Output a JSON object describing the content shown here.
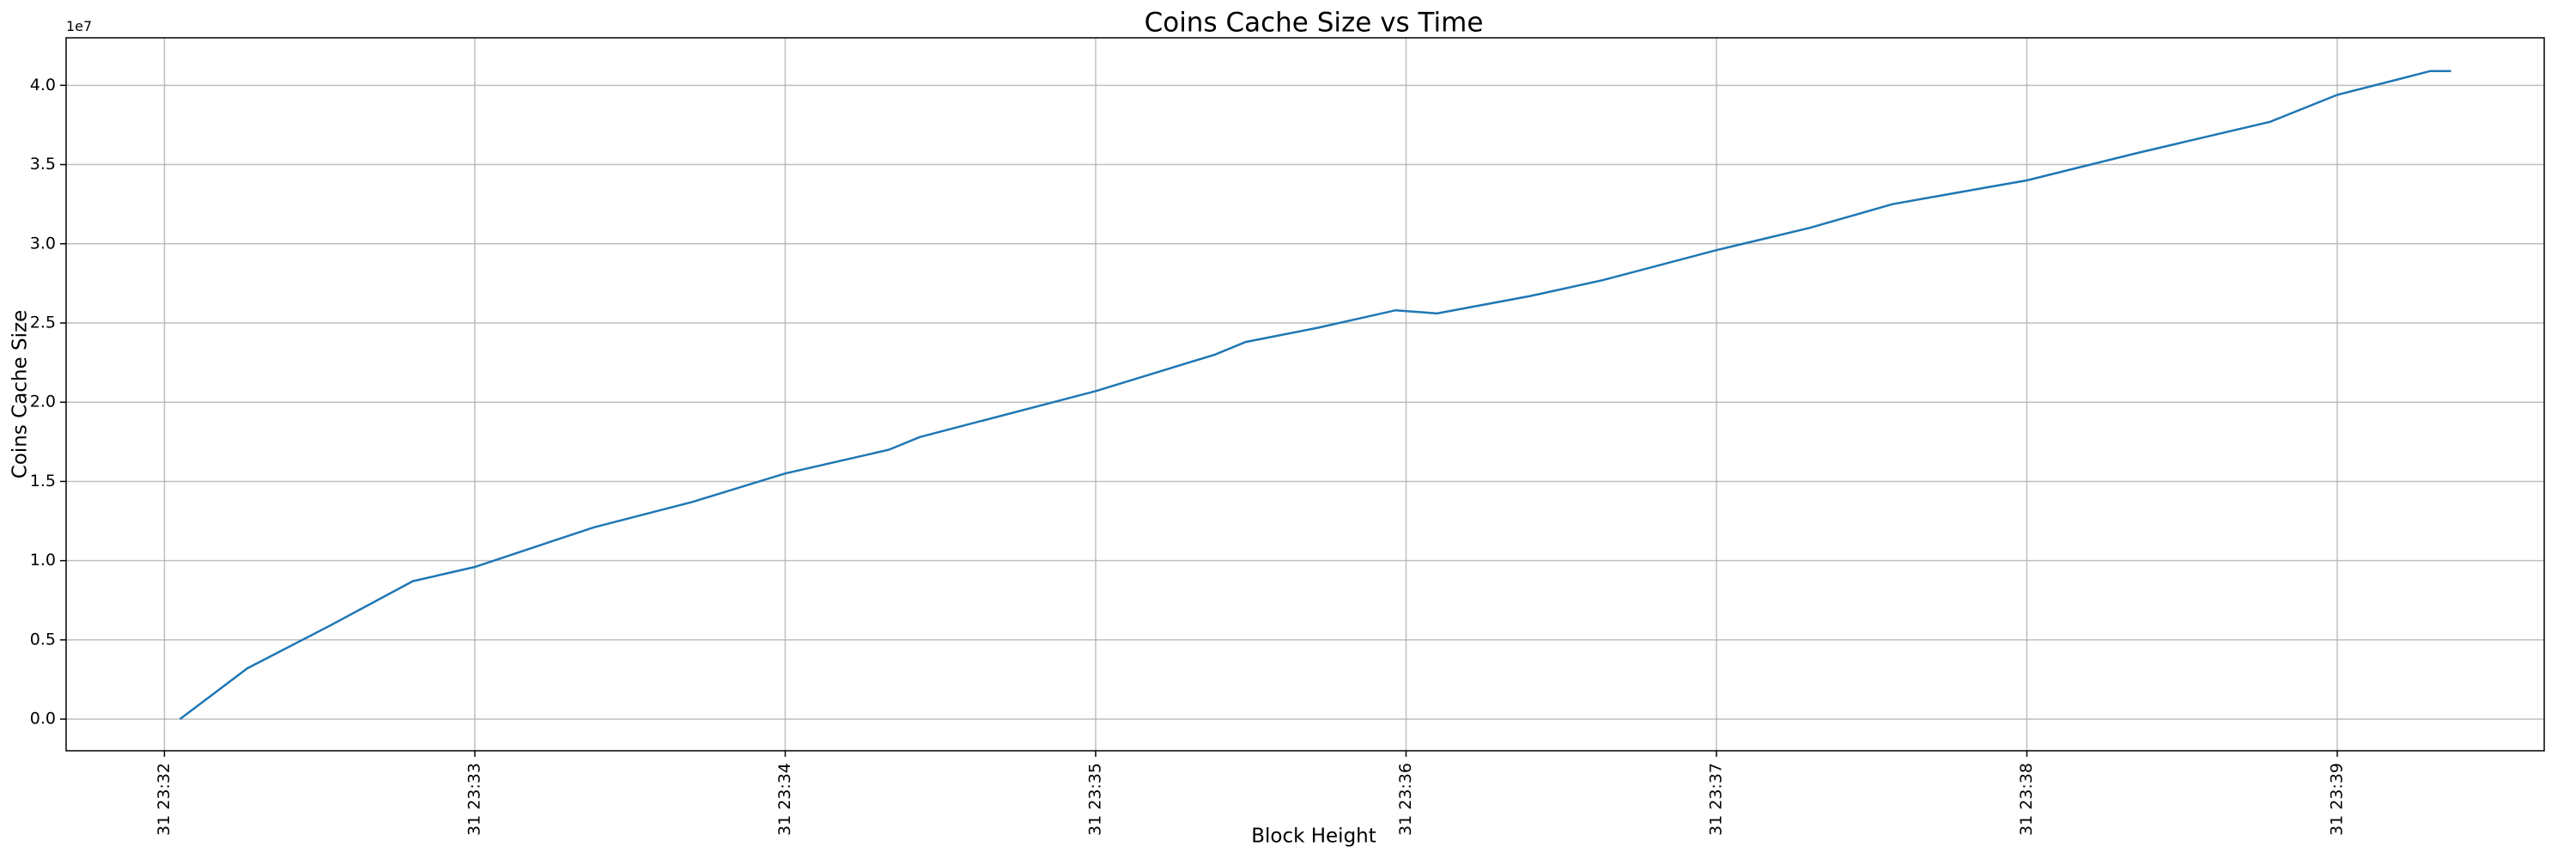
{
  "chart_data": {
    "type": "line",
    "title": "Coins Cache Size vs Time",
    "x_label": "Block Height",
    "y_label": "Coins Cache Size",
    "y_offset_label": "1e7",
    "x": [
      "31 23:32:03",
      "31 23:32:16",
      "31 23:32:32",
      "31 23:32:48",
      "31 23:33:00",
      "31 23:33:23",
      "31 23:33:42",
      "31 23:34:00",
      "31 23:34:20",
      "31 23:34:26",
      "31 23:35:00",
      "31 23:35:23",
      "31 23:35:29",
      "31 23:35:43",
      "31 23:35:58",
      "31 23:36:06",
      "31 23:36:24",
      "31 23:36:38",
      "31 23:37:00",
      "31 23:37:18",
      "31 23:37:34",
      "31 23:37:53",
      "31 23:38:00",
      "31 23:38:21",
      "31 23:38:47",
      "31 23:39:00",
      "31 23:39:12",
      "31 23:39:18",
      "31 23:39:22"
    ],
    "series": [
      {
        "name": "Coins Cache Size",
        "color": "#1f77b4",
        "values": [
          0,
          3200000,
          5900000,
          8700000,
          9600000,
          12100000,
          13700000,
          15500000,
          17000000,
          17800000,
          20700000,
          23000000,
          23800000,
          24700000,
          25800000,
          25600000,
          26700000,
          27700000,
          29600000,
          31000000,
          32500000,
          33600000,
          34000000,
          35700000,
          37700000,
          39400000,
          40400000,
          40900000,
          40900000
        ]
      }
    ],
    "xlim": [
      "31 23:31:41",
      "31 23:39:40"
    ],
    "xticks": [
      "31 23:32",
      "31 23:33",
      "31 23:34",
      "31 23:35",
      "31 23:36",
      "31 23:37",
      "31 23:38",
      "31 23:39"
    ],
    "ylim": [
      -2000000,
      43000000
    ],
    "yticks": [
      {
        "value": 0,
        "label": "0.0"
      },
      {
        "value": 5000000,
        "label": "0.5"
      },
      {
        "value": 10000000,
        "label": "1.0"
      },
      {
        "value": 15000000,
        "label": "1.5"
      },
      {
        "value": 20000000,
        "label": "2.0"
      },
      {
        "value": 25000000,
        "label": "2.5"
      },
      {
        "value": 30000000,
        "label": "3.0"
      },
      {
        "value": 35000000,
        "label": "3.5"
      },
      {
        "value": 40000000,
        "label": "4.0"
      }
    ],
    "grid": true
  }
}
